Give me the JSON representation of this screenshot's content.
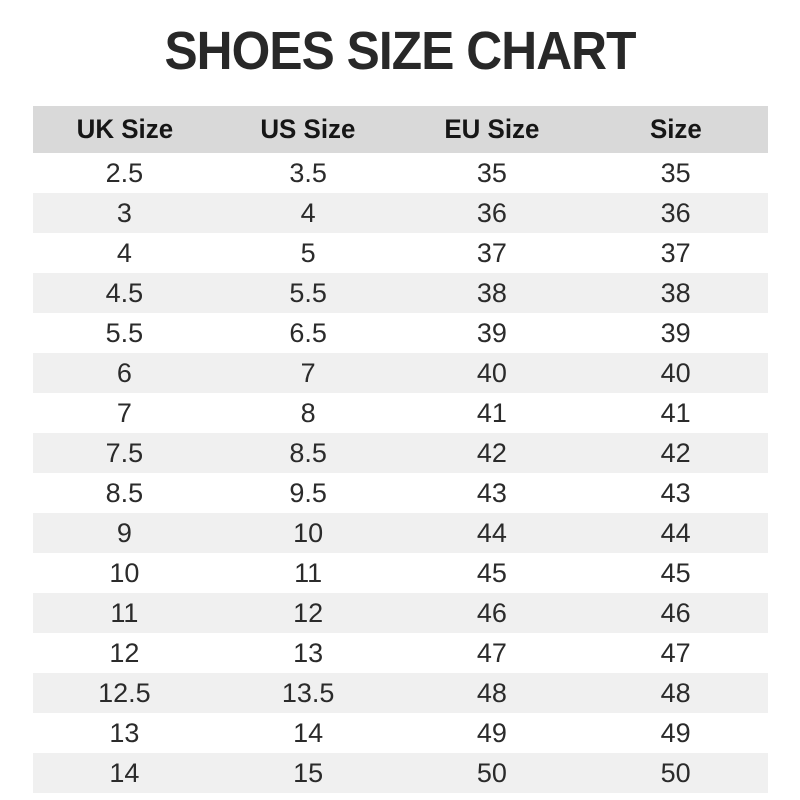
{
  "title": "SHOES SIZE CHART",
  "colors": {
    "header_bg": "#d9d9d9",
    "stripe_bg": "#f0f0f0",
    "title_color": "#282828",
    "text_color": "#2b2b2b"
  },
  "chart_data": {
    "type": "table",
    "title": "SHOES SIZE CHART",
    "columns": [
      "UK Size",
      "US Size",
      "EU Size",
      "Size"
    ],
    "rows": [
      [
        "2.5",
        "3.5",
        "35",
        "35"
      ],
      [
        "3",
        "4",
        "36",
        "36"
      ],
      [
        "4",
        "5",
        "37",
        "37"
      ],
      [
        "4.5",
        "5.5",
        "38",
        "38"
      ],
      [
        "5.5",
        "6.5",
        "39",
        "39"
      ],
      [
        "6",
        "7",
        "40",
        "40"
      ],
      [
        "7",
        "8",
        "41",
        "41"
      ],
      [
        "7.5",
        "8.5",
        "42",
        "42"
      ],
      [
        "8.5",
        "9.5",
        "43",
        "43"
      ],
      [
        "9",
        "10",
        "44",
        "44"
      ],
      [
        "10",
        "11",
        "45",
        "45"
      ],
      [
        "11",
        "12",
        "46",
        "46"
      ],
      [
        "12",
        "13",
        "47",
        "47"
      ],
      [
        "12.5",
        "13.5",
        "48",
        "48"
      ],
      [
        "13",
        "14",
        "49",
        "49"
      ],
      [
        "14",
        "15",
        "50",
        "50"
      ]
    ],
    "layout": {
      "stripes": "even rows shaded",
      "alignment": "center",
      "grid": false
    }
  }
}
